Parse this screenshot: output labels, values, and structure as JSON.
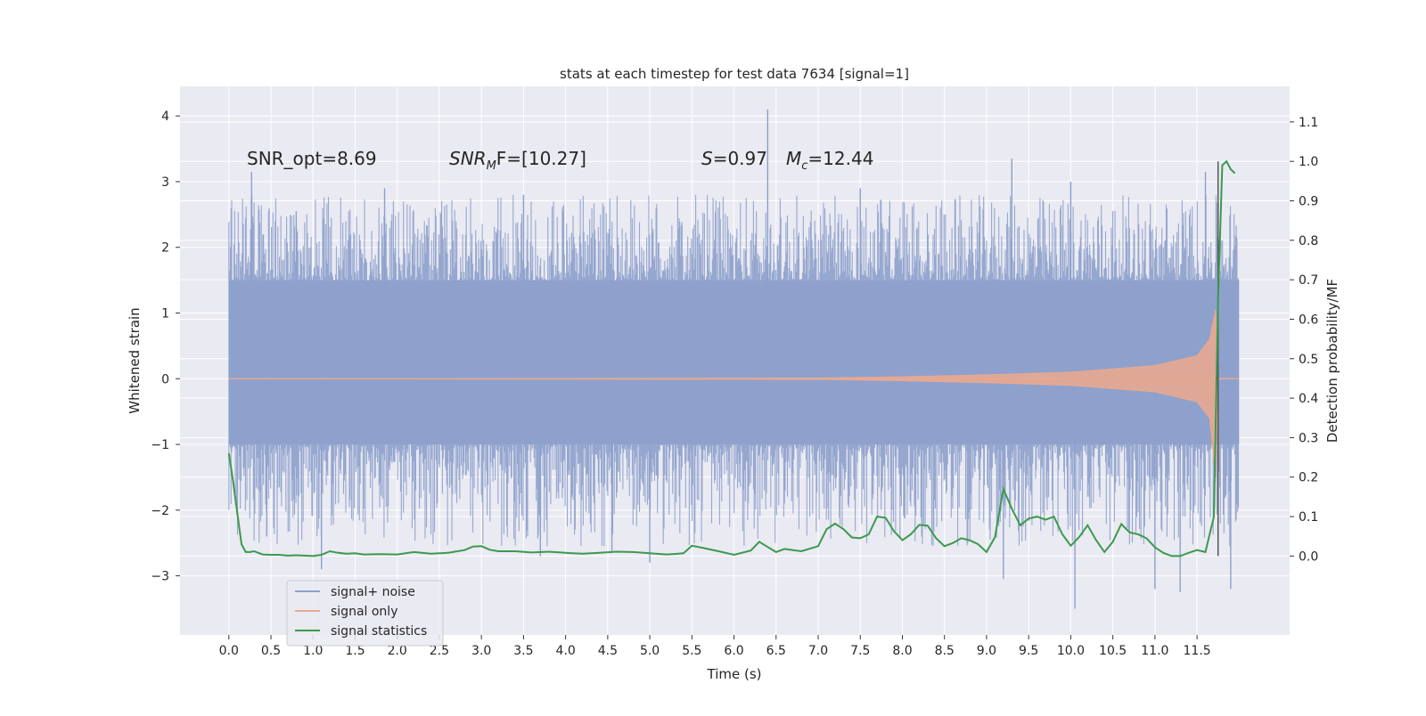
{
  "chart_data": {
    "type": "line",
    "title": "stats at each timestep for test data 7634 [signal=1]",
    "xlabel": "Time (s)",
    "ylabel": "Whitened strain",
    "ylabel_right": "Detection probability/MF",
    "xlim": [
      -0.58,
      12.6
    ],
    "ylim": [
      -3.9,
      4.45
    ],
    "ylim_right": [
      -0.2,
      1.19
    ],
    "x_ticks": [
      0.0,
      0.5,
      1.0,
      1.5,
      2.0,
      2.5,
      3.0,
      3.5,
      4.0,
      4.5,
      5.0,
      5.5,
      6.0,
      6.5,
      7.0,
      7.5,
      8.0,
      8.5,
      9.0,
      9.5,
      10.0,
      10.5,
      11.0,
      11.5
    ],
    "x_tick_labels": [
      "0.0",
      "0.5",
      "1.0",
      "1.5",
      "2.0",
      "2.5",
      "3.0",
      "3.5",
      "4.0",
      "4.5",
      "5.0",
      "5.5",
      "6.0",
      "6.5",
      "7.0",
      "7.5",
      "8.0",
      "8.5",
      "9.0",
      "9.5",
      "10.0",
      "10.5",
      "11.0",
      "11.5"
    ],
    "y_ticks": [
      -3,
      -2,
      -1,
      0,
      1,
      2,
      3,
      4
    ],
    "y_tick_labels": [
      "−3",
      "−2",
      "−1",
      "0",
      "1",
      "2",
      "3",
      "4"
    ],
    "y_right_ticks": [
      0.0,
      0.1,
      0.2,
      0.3,
      0.4,
      0.5,
      0.6,
      0.7,
      0.8,
      0.9,
      1.0,
      1.1
    ],
    "y_right_tick_labels": [
      "0.0",
      "0.1",
      "0.2",
      "0.3",
      "0.4",
      "0.5",
      "0.6",
      "0.7",
      "0.8",
      "0.9",
      "1.0",
      "1.1"
    ],
    "annotations": {
      "snr_opt": "SNR_opt=8.69",
      "snr_mf_base": "SNR",
      "snr_mf_sub": "M",
      "snr_mf_rest": "F=[10.27]",
      "s_var": "S",
      "s_rest": "=0.97",
      "mc_base": "M",
      "mc_sub": "c",
      "mc_rest": "=12.44"
    },
    "legend_position": "lower-left",
    "series": [
      {
        "name": "signal+ noise",
        "color": "#8da0cb",
        "x_range": [
          0.0,
          12.0
        ],
        "core_band": [
          -1.0,
          1.5
        ],
        "spikes": [
          {
            "x": 0.27,
            "y": 3.15
          },
          {
            "x": 0.8,
            "y": 2.55
          },
          {
            "x": 1.85,
            "y": 2.9
          },
          {
            "x": 3.5,
            "y": 2.8
          },
          {
            "x": 6.4,
            "y": 4.1
          },
          {
            "x": 7.5,
            "y": 2.9
          },
          {
            "x": 9.3,
            "y": 3.35
          },
          {
            "x": 10.0,
            "y": 3.0
          },
          {
            "x": 11.6,
            "y": 3.15
          },
          {
            "x": 0.45,
            "y": -2.4
          },
          {
            "x": 1.1,
            "y": -2.9
          },
          {
            "x": 3.7,
            "y": -2.7
          },
          {
            "x": 4.55,
            "y": -2.65
          },
          {
            "x": 5.0,
            "y": -2.8
          },
          {
            "x": 9.2,
            "y": -3.05
          },
          {
            "x": 10.05,
            "y": -3.5
          },
          {
            "x": 11.0,
            "y": -3.2
          },
          {
            "x": 11.3,
            "y": -3.25
          },
          {
            "x": 11.9,
            "y": -3.2
          }
        ]
      },
      {
        "name": "signal only",
        "color": "#e8a890",
        "description_x": [
          0.0,
          7.0,
          8.0,
          9.0,
          10.0,
          11.0,
          11.5,
          11.65,
          11.72,
          11.75,
          12.0
        ],
        "envelope_upper": [
          0.0,
          0.01,
          0.03,
          0.06,
          0.1,
          0.2,
          0.35,
          0.6,
          1.05,
          0.0,
          0.0
        ],
        "envelope_lower": [
          0.0,
          -0.01,
          -0.03,
          -0.06,
          -0.1,
          -0.2,
          -0.35,
          -0.6,
          -1.5,
          0.0,
          0.0
        ]
      },
      {
        "name": "signal statistics",
        "color": "#3a9a4d",
        "axis": "right",
        "x": [
          0.0,
          0.05,
          0.1,
          0.15,
          0.2,
          0.25,
          0.3,
          0.4,
          0.5,
          0.6,
          0.7,
          0.8,
          0.9,
          1.0,
          1.1,
          1.2,
          1.3,
          1.4,
          1.5,
          1.6,
          1.8,
          2.0,
          2.2,
          2.4,
          2.6,
          2.8,
          2.9,
          3.0,
          3.1,
          3.2,
          3.4,
          3.6,
          3.8,
          4.0,
          4.2,
          4.4,
          4.6,
          4.8,
          5.0,
          5.2,
          5.4,
          5.5,
          5.6,
          5.8,
          6.0,
          6.2,
          6.3,
          6.4,
          6.5,
          6.6,
          6.8,
          7.0,
          7.1,
          7.2,
          7.3,
          7.4,
          7.5,
          7.6,
          7.7,
          7.8,
          7.9,
          8.0,
          8.1,
          8.2,
          8.3,
          8.4,
          8.5,
          8.6,
          8.7,
          8.8,
          8.9,
          9.0,
          9.1,
          9.2,
          9.3,
          9.4,
          9.5,
          9.6,
          9.7,
          9.8,
          9.9,
          10.0,
          10.1,
          10.2,
          10.3,
          10.4,
          10.5,
          10.6,
          10.7,
          10.8,
          10.9,
          11.0,
          11.1,
          11.2,
          11.3,
          11.4,
          11.5,
          11.6,
          11.7,
          11.75,
          11.8,
          11.85,
          11.9,
          11.95
        ],
        "y": [
          0.26,
          0.19,
          0.11,
          0.03,
          0.01,
          0.01,
          0.012,
          0.004,
          0.003,
          0.003,
          0.001,
          0.002,
          0.001,
          0.0,
          0.003,
          0.012,
          0.008,
          0.006,
          0.007,
          0.004,
          0.005,
          0.004,
          0.01,
          0.006,
          0.008,
          0.015,
          0.024,
          0.025,
          0.016,
          0.012,
          0.012,
          0.009,
          0.011,
          0.008,
          0.006,
          0.008,
          0.011,
          0.01,
          0.007,
          0.004,
          0.007,
          0.026,
          0.022,
          0.013,
          0.003,
          0.014,
          0.036,
          0.023,
          0.01,
          0.018,
          0.012,
          0.025,
          0.068,
          0.082,
          0.068,
          0.047,
          0.045,
          0.055,
          0.1,
          0.097,
          0.063,
          0.04,
          0.055,
          0.079,
          0.077,
          0.045,
          0.025,
          0.033,
          0.045,
          0.04,
          0.03,
          0.01,
          0.048,
          0.17,
          0.12,
          0.078,
          0.095,
          0.1,
          0.092,
          0.1,
          0.055,
          0.026,
          0.048,
          0.078,
          0.041,
          0.01,
          0.036,
          0.081,
          0.06,
          0.055,
          0.045,
          0.022,
          0.008,
          0.0,
          0.0,
          0.008,
          0.015,
          0.01,
          0.1,
          0.65,
          0.99,
          1.0,
          0.98,
          0.97
        ]
      }
    ],
    "vertical_marker_x": 11.75
  }
}
